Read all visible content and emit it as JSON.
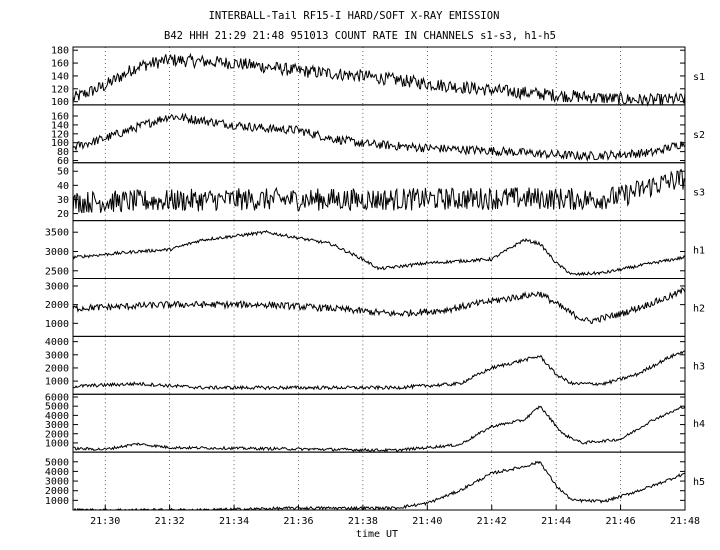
{
  "title": "INTERBALL-Tail RF15-I HARD/SOFT X-RAY EMISSION",
  "subtitle": "B42 HHH 21:29 21:48 951013  COUNT RATE IN CHANNELS s1-s3, h1-h5",
  "chart_data": {
    "type": "line",
    "title": "INTERBALL-Tail RF15-I HARD/SOFT X-RAY EMISSION",
    "subtitle": "B42 HHH 21:29 21:48 951013  COUNT RATE IN CHANNELS s1-s3, h1-h5",
    "xlabel": "time UT",
    "xlim": [
      "21:29",
      "21:48"
    ],
    "x_ticks": [
      "21:30",
      "21:32",
      "21:34",
      "21:36",
      "21:38",
      "21:40",
      "21:42",
      "21:44",
      "21:46",
      "21:48"
    ],
    "grid": true,
    "series": [
      {
        "name": "s1",
        "ylim": [
          95,
          185
        ],
        "yticks": [
          100,
          120,
          140,
          160,
          180
        ],
        "noise": 10,
        "points": [
          [
            0,
            105
          ],
          [
            1,
            125
          ],
          [
            2,
            155
          ],
          [
            3,
            165
          ],
          [
            5,
            160
          ],
          [
            7,
            148
          ],
          [
            9,
            140
          ],
          [
            11,
            128
          ],
          [
            13,
            118
          ],
          [
            15,
            110
          ],
          [
            17,
            104
          ],
          [
            18,
            102
          ],
          [
            19,
            104
          ]
        ]
      },
      {
        "name": "s2",
        "ylim": [
          55,
          185
        ],
        "yticks": [
          60,
          80,
          100,
          120,
          140,
          160
        ],
        "noise": 10,
        "points": [
          [
            0,
            90
          ],
          [
            1,
            110
          ],
          [
            2,
            135
          ],
          [
            3,
            160
          ],
          [
            4,
            150
          ],
          [
            5,
            140
          ],
          [
            6,
            132
          ],
          [
            7,
            128
          ],
          [
            8,
            110
          ],
          [
            9,
            98
          ],
          [
            11,
            88
          ],
          [
            13,
            82
          ],
          [
            15,
            73
          ],
          [
            16,
            70
          ],
          [
            18,
            78
          ],
          [
            19,
            100
          ]
        ]
      },
      {
        "name": "s3",
        "ylim": [
          15,
          56
        ],
        "yticks": [
          20,
          30,
          40,
          50
        ],
        "noise": 8,
        "points": [
          [
            0,
            28
          ],
          [
            5,
            30
          ],
          [
            10,
            30
          ],
          [
            14,
            31
          ],
          [
            16,
            30
          ],
          [
            17,
            32
          ],
          [
            18,
            40
          ],
          [
            19,
            45
          ]
        ]
      },
      {
        "name": "h1",
        "ylim": [
          2300,
          3800
        ],
        "yticks": [
          2500,
          3000,
          3500
        ],
        "noise": 40,
        "points": [
          [
            0,
            2850
          ],
          [
            2,
            3000
          ],
          [
            3,
            3050
          ],
          [
            4,
            3300
          ],
          [
            6,
            3500
          ],
          [
            7,
            3350
          ],
          [
            8,
            3200
          ],
          [
            9,
            2800
          ],
          [
            9.5,
            2550
          ],
          [
            11,
            2700
          ],
          [
            13,
            2800
          ],
          [
            14,
            3300
          ],
          [
            14.5,
            3200
          ],
          [
            15,
            2700
          ],
          [
            15.5,
            2400
          ],
          [
            16.5,
            2450
          ],
          [
            18,
            2700
          ],
          [
            19,
            2850
          ]
        ]
      },
      {
        "name": "h2",
        "ylim": [
          300,
          3400
        ],
        "yticks": [
          1000,
          2000,
          3000
        ],
        "noise": 180,
        "points": [
          [
            0,
            1800
          ],
          [
            3,
            2000
          ],
          [
            6,
            2000
          ],
          [
            8,
            1800
          ],
          [
            10,
            1500
          ],
          [
            11.5,
            1700
          ],
          [
            13,
            2200
          ],
          [
            14.5,
            2600
          ],
          [
            15.5,
            1500
          ],
          [
            16,
            1100
          ],
          [
            17,
            1500
          ],
          [
            18.5,
            2400
          ],
          [
            19,
            2800
          ]
        ]
      },
      {
        "name": "h3",
        "ylim": [
          0,
          4400
        ],
        "yticks": [
          1000,
          2000,
          3000,
          4000
        ],
        "noise": 130,
        "points": [
          [
            0,
            600
          ],
          [
            2,
            800
          ],
          [
            4,
            500
          ],
          [
            8,
            500
          ],
          [
            10,
            500
          ],
          [
            12,
            800
          ],
          [
            13,
            2000
          ],
          [
            14,
            2600
          ],
          [
            14.5,
            2900
          ],
          [
            15,
            1500
          ],
          [
            15.5,
            800
          ],
          [
            16.5,
            800
          ],
          [
            17.5,
            1500
          ],
          [
            18.5,
            2800
          ],
          [
            19,
            3300
          ]
        ]
      },
      {
        "name": "h4",
        "ylim": [
          0,
          6300
        ],
        "yticks": [
          1000,
          2000,
          3000,
          4000,
          5000,
          6000
        ],
        "noise": 150,
        "points": [
          [
            0,
            400
          ],
          [
            1,
            300
          ],
          [
            2,
            900
          ],
          [
            3,
            500
          ],
          [
            8,
            300
          ],
          [
            10,
            200
          ],
          [
            12,
            800
          ],
          [
            13,
            2800
          ],
          [
            14,
            3500
          ],
          [
            14.5,
            5000
          ],
          [
            15.2,
            2000
          ],
          [
            15.8,
            1000
          ],
          [
            17,
            1400
          ],
          [
            18,
            3500
          ],
          [
            19,
            5000
          ]
        ]
      },
      {
        "name": "h5",
        "ylim": [
          0,
          6000
        ],
        "yticks": [
          1000,
          2000,
          3000,
          4000,
          5000
        ],
        "noise": 150,
        "points": [
          [
            0,
            0
          ],
          [
            4,
            0
          ],
          [
            7,
            200
          ],
          [
            10,
            200
          ],
          [
            11,
            700
          ],
          [
            12,
            2000
          ],
          [
            13,
            3800
          ],
          [
            14,
            4500
          ],
          [
            14.5,
            5000
          ],
          [
            15,
            2500
          ],
          [
            15.5,
            1000
          ],
          [
            16.5,
            900
          ],
          [
            17,
            1400
          ],
          [
            18,
            2500
          ],
          [
            19,
            3800
          ]
        ]
      }
    ]
  }
}
